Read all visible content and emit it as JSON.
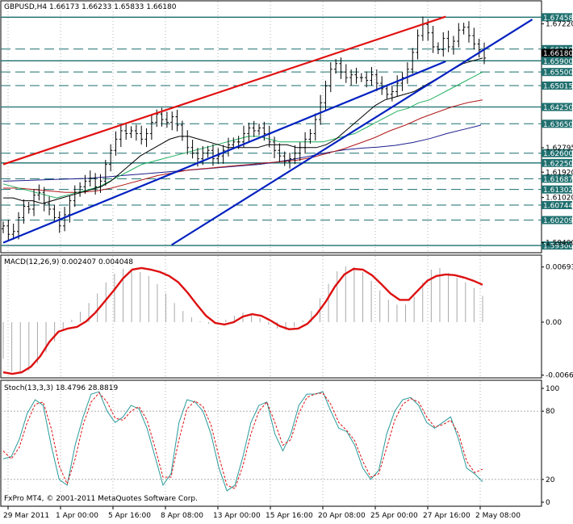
{
  "chart_data": [
    {
      "type": "line",
      "title": "GBPUSD,H4  1.66173 1.66233 1.65833 1.66180",
      "symbol": "GBPUSD,H4",
      "ohlc": [
        "1.66173",
        "1.66233",
        "1.65833",
        "1.66180"
      ],
      "ylim": [
        1.591,
        1.679
      ],
      "x_labels": [
        "29 Mar 2011",
        "1 Apr 00:00",
        "5 Apr 16:00",
        "8 Apr 08:00",
        "13 Apr 00:00",
        "15 Apr 16:00",
        "20 Apr 08:00",
        "25 Apr 00:00",
        "27 Apr 16:00",
        "2 May 08:00"
      ],
      "y_tick_labels": [
        {
          "v": 1.6722,
          "text": "1.67220"
        },
        {
          "v": 1.62795,
          "text": "1.62795"
        },
        {
          "v": 1.6192,
          "text": "1.61920"
        },
        {
          "v": 1.6102,
          "text": "1.61020"
        },
        {
          "v": 1.594,
          "text": "1.59400"
        }
      ],
      "levels": [
        {
          "v": 1.67458,
          "text": "1.67458",
          "style": "solid"
        },
        {
          "v": 1.66319,
          "text": "1.66319",
          "style": "dashed"
        },
        {
          "v": 1.6618,
          "text": "1.66180",
          "style": "none"
        },
        {
          "v": 1.659,
          "text": "1.65900",
          "style": "solid"
        },
        {
          "v": 1.655,
          "text": "1.65500",
          "style": "dashed"
        },
        {
          "v": 1.65015,
          "text": "1.65015",
          "style": "dashed"
        },
        {
          "v": 1.6425,
          "text": "1.64250",
          "style": "solid"
        },
        {
          "v": 1.6365,
          "text": "1.63650",
          "style": "dashed"
        },
        {
          "v": 1.626,
          "text": "1.62600",
          "style": "dashed"
        },
        {
          "v": 1.6225,
          "text": "1.62250",
          "style": "solid"
        },
        {
          "v": 1.61687,
          "text": "1.61687",
          "style": "dashed"
        },
        {
          "v": 1.61302,
          "text": "1.61302",
          "style": "dashed"
        },
        {
          "v": 1.60744,
          "text": "1.60744",
          "style": "dashed"
        },
        {
          "v": 1.60209,
          "text": "1.60209",
          "style": "dashed"
        },
        {
          "v": 1.593,
          "text": "1.59300",
          "style": "solid"
        }
      ],
      "prices": [
        1.6,
        1.597,
        1.598,
        1.603,
        1.607,
        1.606,
        1.611,
        1.612,
        1.608,
        1.606,
        1.603,
        1.6,
        1.604,
        1.609,
        1.612,
        1.614,
        1.616,
        1.617,
        1.614,
        1.616,
        1.622,
        1.627,
        1.631,
        1.634,
        1.633,
        1.634,
        1.633,
        1.631,
        1.633,
        1.637,
        1.64,
        1.638,
        1.637,
        1.639,
        1.636,
        1.632,
        1.628,
        1.626,
        1.624,
        1.626,
        1.627,
        1.624,
        1.625,
        1.627,
        1.629,
        1.63,
        1.63,
        1.633,
        1.635,
        1.634,
        1.635,
        1.633,
        1.63,
        1.627,
        1.625,
        1.623,
        1.624,
        1.626,
        1.628,
        1.631,
        1.633,
        1.638,
        1.644,
        1.65,
        1.656,
        1.658,
        1.655,
        1.653,
        1.654,
        1.653,
        1.653,
        1.652,
        1.654,
        1.651,
        1.649,
        1.647,
        1.648,
        1.651,
        1.653,
        1.656,
        1.662,
        1.668,
        1.672,
        1.669,
        1.664,
        1.663,
        1.667,
        1.664,
        1.666,
        1.67,
        1.671,
        1.668,
        1.665,
        1.663,
        1.66
      ],
      "ma_black": [
        1.61,
        1.61,
        1.609,
        1.609,
        1.608,
        1.609,
        1.61,
        1.611,
        1.612,
        1.613,
        1.614,
        1.616,
        1.619,
        1.622,
        1.625,
        1.627,
        1.629,
        1.631,
        1.632,
        1.632,
        1.631,
        1.63,
        1.629,
        1.628,
        1.628,
        1.628,
        1.628,
        1.629,
        1.629,
        1.629,
        1.628,
        1.628,
        1.628,
        1.629,
        1.631,
        1.634,
        1.637,
        1.64,
        1.643,
        1.645,
        1.646,
        1.647,
        1.648,
        1.65,
        1.652,
        1.654,
        1.656,
        1.658,
        1.659,
        1.66
      ],
      "ma_green": [
        1.615,
        1.614,
        1.613,
        1.612,
        1.611,
        1.61,
        1.611,
        1.612,
        1.613,
        1.614,
        1.616,
        1.618,
        1.62,
        1.622,
        1.623,
        1.624,
        1.625,
        1.626,
        1.627,
        1.628,
        1.629,
        1.63,
        1.631,
        1.632,
        1.632,
        1.631,
        1.63,
        1.63,
        1.63,
        1.63,
        1.63,
        1.631,
        1.632,
        1.633,
        1.635,
        1.637,
        1.639,
        1.641,
        1.642,
        1.644,
        1.645,
        1.647,
        1.649,
        1.651,
        1.653,
        1.655
      ],
      "ma_red": [
        1.6135,
        1.6135,
        1.613,
        1.6125,
        1.612,
        1.612,
        1.6125,
        1.6135,
        1.615,
        1.6165,
        1.618,
        1.619,
        1.62,
        1.6205,
        1.621,
        1.6215,
        1.622,
        1.6225,
        1.623,
        1.6235,
        1.6245,
        1.626,
        1.6275,
        1.6295,
        1.6315,
        1.634,
        1.636,
        1.6385,
        1.6405,
        1.6425,
        1.644,
        1.645
      ],
      "ma_navy": [
        1.616,
        1.6162,
        1.6164,
        1.6166,
        1.6168,
        1.617,
        1.6175,
        1.618,
        1.6185,
        1.619,
        1.6195,
        1.62,
        1.6205,
        1.621,
        1.6215,
        1.622,
        1.6228,
        1.6238,
        1.625,
        1.6262,
        1.6272,
        1.6278,
        1.6282,
        1.6288,
        1.6298,
        1.6312,
        1.633,
        1.6345,
        1.636
      ],
      "trendlines": [
        {
          "name": "red channel top",
          "color": "#e01010",
          "x0": 0.0,
          "y0": 1.622,
          "x1": 0.92,
          "y1": 1.6748
        },
        {
          "name": "blue channel bottom",
          "color": "#0020c0",
          "x0": 0.0,
          "y0": 1.594,
          "x1": 0.92,
          "y1": 1.6588
        },
        {
          "name": "blue steep support",
          "color": "#0020c0",
          "x0": 0.35,
          "y0": 1.5932,
          "x1": 1.1,
          "y1": 1.6738
        }
      ]
    },
    {
      "type": "bar",
      "title": "MACD(12,26,9) 0.002407 0.004048",
      "ylim": [
        -0.0067,
        0.007
      ],
      "y_tick_labels": [
        {
          "v": 0.00693,
          "text": "0.00693"
        },
        {
          "v": 0.0,
          "text": "0.00"
        },
        {
          "v": -0.00666,
          "text": "-0.00666"
        }
      ],
      "histogram": [
        -0.0046,
        -0.0062,
        -0.0064,
        -0.0061,
        -0.0052,
        -0.0038,
        -0.0024,
        -0.001,
        0.0003,
        0.0013,
        0.0024,
        0.0036,
        0.005,
        0.0061,
        0.0067,
        0.0066,
        0.0063,
        0.0058,
        0.0048,
        0.0036,
        0.0024,
        0.0014,
        0.0006,
        0.0001,
        -0.0002,
        -0.0001,
        0.0003,
        0.0008,
        0.0012,
        0.001,
        0.0005,
        -0.0003,
        -0.0008,
        -0.001,
        -0.0006,
        0.0002,
        0.0014,
        0.003,
        0.0048,
        0.0064,
        0.007,
        0.0069,
        0.0063,
        0.0052,
        0.004,
        0.0028,
        0.0022,
        0.0022,
        0.0032,
        0.005,
        0.0066,
        0.0068,
        0.0062,
        0.0056,
        0.005,
        0.0043,
        0.0033
      ],
      "signal": [
        -0.0063,
        -0.0065,
        -0.0063,
        -0.0056,
        -0.0043,
        -0.0025,
        -0.0012,
        -0.0008,
        -0.0006,
        0.0001,
        0.0012,
        0.0026,
        0.004,
        0.0055,
        0.0066,
        0.0068,
        0.0066,
        0.0063,
        0.0058,
        0.005,
        0.0037,
        0.0022,
        0.0008,
        -0.0001,
        -0.0003,
        0.0,
        0.0007,
        0.001,
        0.0008,
        0.0002,
        -0.0005,
        -0.0009,
        -0.0008,
        -0.0002,
        0.001,
        0.0026,
        0.0045,
        0.006,
        0.0067,
        0.0066,
        0.0059,
        0.0048,
        0.0036,
        0.0028,
        0.0028,
        0.004,
        0.0052,
        0.0058,
        0.006,
        0.0059,
        0.0056,
        0.0052,
        0.0047
      ]
    },
    {
      "type": "line",
      "title": "Stoch(13,3,3) 18.4796 28.8819",
      "ylim": [
        0,
        100
      ],
      "y_tick_labels": [
        {
          "v": 100,
          "text": "100"
        },
        {
          "v": 80,
          "text": "80"
        },
        {
          "v": 20,
          "text": "20"
        },
        {
          "v": 0,
          "text": "0"
        }
      ],
      "main": [
        38,
        40,
        55,
        78,
        90,
        85,
        50,
        20,
        15,
        50,
        75,
        95,
        97,
        80,
        70,
        75,
        85,
        82,
        65,
        40,
        15,
        25,
        70,
        90,
        88,
        80,
        60,
        30,
        10,
        15,
        40,
        70,
        85,
        88,
        60,
        45,
        60,
        85,
        95,
        95,
        97,
        80,
        65,
        62,
        50,
        30,
        20,
        28,
        60,
        80,
        90,
        92,
        85,
        70,
        65,
        70,
        75,
        55,
        30,
        25,
        18
      ],
      "signal": [
        45,
        38,
        48,
        70,
        86,
        88,
        65,
        32,
        16,
        38,
        68,
        88,
        96,
        88,
        74,
        72,
        80,
        84,
        72,
        48,
        22,
        22,
        55,
        82,
        89,
        84,
        68,
        40,
        15,
        12,
        32,
        60,
        80,
        88,
        70,
        50,
        55,
        78,
        92,
        95,
        96,
        86,
        70,
        63,
        54,
        36,
        22,
        25,
        48,
        72,
        86,
        91,
        88,
        75,
        66,
        68,
        72,
        60,
        36,
        26,
        29
      ],
      "footer": "FxPro MT4, © 2001-2011 MetaQuotes Software Corp."
    }
  ]
}
